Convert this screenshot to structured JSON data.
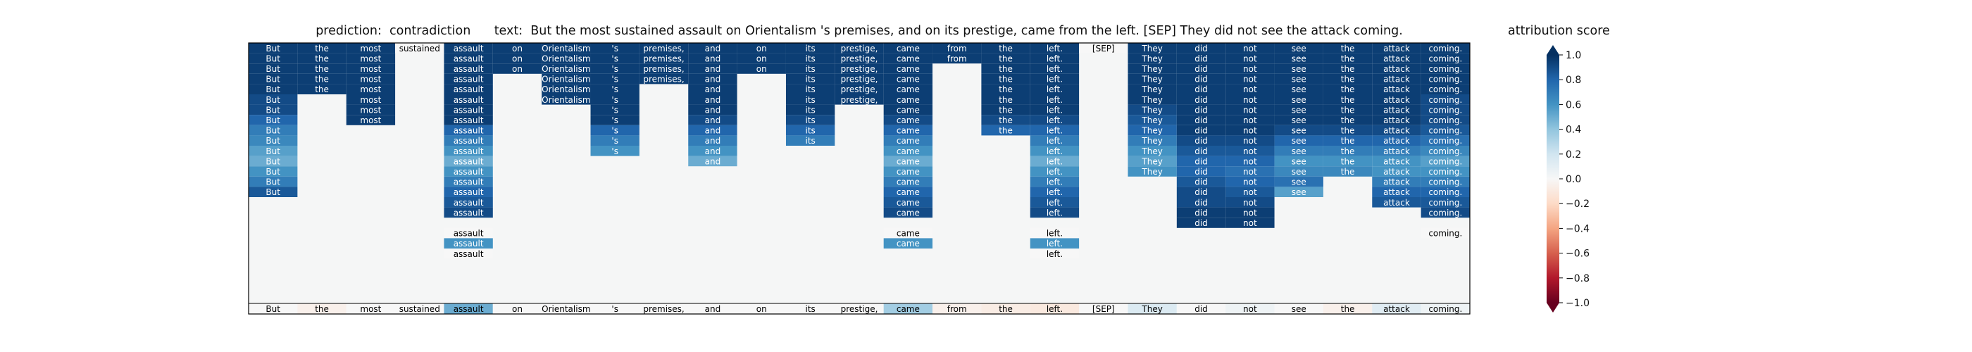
{
  "header": {
    "title": "prediction:  contradiction      text:  But the most sustained assault on Orientalism 's premises, and on its prestige, came from the left. [SEP] They did not see the attack coming."
  },
  "colorbar": {
    "title": "attribution score",
    "ticks": [
      "1.0",
      "0.8",
      "0.6",
      "0.4",
      "0.2",
      "0.0",
      "−0.2",
      "−0.4",
      "−0.6",
      "−0.8",
      "−1.0"
    ],
    "tick_values": [
      1.0,
      0.8,
      0.6,
      0.4,
      0.2,
      0.0,
      -0.2,
      -0.4,
      -0.6,
      -0.8,
      -1.0
    ],
    "range": [
      -1.0,
      1.0
    ],
    "colormap": "RdBu",
    "extend": "both"
  },
  "chart_data": {
    "type": "heatmap",
    "tokens": [
      "But",
      "the",
      "most",
      "sustained",
      "assault",
      "on",
      "Orientalism",
      "'s",
      "premises,",
      "and",
      "on",
      "its",
      "prestige,",
      "came",
      "from",
      "the",
      "left.",
      "[SEP]",
      "They",
      "did",
      "not",
      "see",
      "the",
      "attack",
      "coming."
    ],
    "token_attribution": [
      0.0,
      -0.05,
      0.0,
      0.0,
      0.5,
      0.0,
      0.0,
      0.0,
      0.0,
      0.0,
      0.0,
      0.0,
      0.0,
      0.35,
      -0.05,
      -0.08,
      -0.1,
      0.0,
      0.15,
      0.0,
      0.05,
      0.0,
      -0.05,
      0.12,
      0.05
    ],
    "rows": [
      [
        0.95,
        0.95,
        0.95,
        0.0,
        0.95,
        0.95,
        0.95,
        0.95,
        0.95,
        0.95,
        0.95,
        0.95,
        0.95,
        0.95,
        0.95,
        0.95,
        0.95,
        0.0,
        0.95,
        0.95,
        0.95,
        0.95,
        0.95,
        0.95,
        0.95
      ],
      [
        0.95,
        0.95,
        0.95,
        null,
        0.95,
        0.95,
        0.95,
        0.95,
        0.95,
        0.95,
        0.95,
        0.95,
        0.95,
        0.95,
        0.95,
        0.95,
        0.95,
        null,
        0.95,
        0.95,
        0.95,
        0.95,
        0.95,
        0.95,
        0.95
      ],
      [
        0.95,
        0.95,
        0.95,
        null,
        0.95,
        0.95,
        0.95,
        0.95,
        0.95,
        0.95,
        0.95,
        0.95,
        0.95,
        0.95,
        null,
        0.95,
        0.95,
        null,
        0.95,
        0.95,
        0.95,
        0.95,
        0.95,
        0.95,
        0.95
      ],
      [
        0.95,
        0.95,
        0.95,
        null,
        0.95,
        null,
        0.95,
        0.95,
        0.95,
        0.95,
        null,
        0.95,
        0.95,
        0.95,
        null,
        0.95,
        0.95,
        null,
        0.95,
        0.95,
        0.95,
        0.95,
        0.95,
        0.95,
        0.95
      ],
      [
        0.95,
        0.95,
        0.95,
        null,
        0.95,
        null,
        0.95,
        0.95,
        null,
        0.95,
        null,
        0.95,
        0.95,
        0.95,
        null,
        0.95,
        0.95,
        null,
        0.95,
        0.95,
        0.95,
        0.95,
        0.95,
        0.95,
        0.95
      ],
      [
        0.9,
        null,
        0.95,
        null,
        0.95,
        null,
        0.95,
        0.95,
        null,
        0.95,
        null,
        0.95,
        0.95,
        0.95,
        null,
        0.95,
        0.95,
        null,
        0.95,
        0.95,
        0.95,
        0.95,
        0.95,
        0.95,
        0.9
      ],
      [
        0.9,
        null,
        0.95,
        null,
        0.95,
        null,
        null,
        0.95,
        null,
        0.95,
        null,
        0.95,
        null,
        0.95,
        null,
        0.95,
        0.95,
        null,
        0.9,
        0.95,
        0.95,
        0.95,
        0.95,
        0.95,
        0.9
      ],
      [
        0.8,
        null,
        0.95,
        null,
        0.95,
        null,
        null,
        0.95,
        null,
        0.9,
        null,
        0.9,
        null,
        0.9,
        null,
        0.9,
        0.9,
        null,
        0.85,
        0.95,
        0.95,
        0.95,
        0.95,
        0.95,
        0.9
      ],
      [
        0.7,
        null,
        null,
        null,
        0.8,
        null,
        null,
        0.8,
        null,
        0.8,
        null,
        0.8,
        null,
        0.8,
        null,
        0.8,
        0.8,
        null,
        0.8,
        0.95,
        0.95,
        0.9,
        0.9,
        0.9,
        0.85
      ],
      [
        0.65,
        null,
        null,
        null,
        0.7,
        null,
        null,
        0.7,
        null,
        0.7,
        null,
        0.7,
        null,
        0.7,
        null,
        null,
        0.7,
        null,
        0.7,
        0.9,
        0.9,
        0.8,
        0.8,
        0.8,
        0.75
      ],
      [
        0.55,
        null,
        null,
        null,
        0.6,
        null,
        null,
        0.6,
        null,
        0.6,
        null,
        null,
        null,
        0.6,
        null,
        null,
        0.6,
        null,
        0.6,
        0.85,
        0.85,
        0.7,
        0.7,
        0.7,
        0.65
      ],
      [
        0.5,
        null,
        null,
        null,
        0.5,
        null,
        null,
        null,
        null,
        0.5,
        null,
        null,
        null,
        0.5,
        null,
        null,
        0.5,
        null,
        0.55,
        0.8,
        0.8,
        0.6,
        0.6,
        0.6,
        0.55
      ],
      [
        0.6,
        null,
        null,
        null,
        0.6,
        null,
        null,
        null,
        null,
        null,
        null,
        null,
        null,
        0.6,
        null,
        null,
        0.6,
        null,
        0.6,
        0.8,
        0.75,
        0.65,
        0.65,
        0.6,
        0.6
      ],
      [
        0.7,
        null,
        null,
        null,
        0.7,
        null,
        null,
        null,
        null,
        null,
        null,
        null,
        null,
        0.7,
        null,
        null,
        0.7,
        null,
        null,
        0.85,
        0.8,
        0.75,
        null,
        0.7,
        0.7
      ],
      [
        0.85,
        null,
        null,
        null,
        0.8,
        null,
        null,
        null,
        null,
        null,
        null,
        null,
        null,
        0.8,
        null,
        null,
        0.8,
        null,
        null,
        0.9,
        0.85,
        0.55,
        null,
        0.8,
        0.8
      ],
      [
        null,
        null,
        null,
        null,
        0.85,
        null,
        null,
        null,
        null,
        null,
        null,
        null,
        null,
        0.85,
        null,
        null,
        0.85,
        null,
        null,
        0.9,
        0.9,
        null,
        null,
        0.85,
        0.85
      ],
      [
        null,
        null,
        null,
        null,
        0.9,
        null,
        null,
        null,
        null,
        null,
        null,
        null,
        null,
        0.9,
        null,
        null,
        0.9,
        null,
        null,
        0.95,
        0.95,
        null,
        null,
        null,
        0.9
      ],
      [
        null,
        null,
        null,
        null,
        null,
        null,
        null,
        null,
        null,
        null,
        null,
        null,
        null,
        null,
        null,
        null,
        null,
        null,
        null,
        0.95,
        0.95,
        null,
        null,
        null,
        null
      ],
      [
        null,
        null,
        null,
        null,
        0.0,
        null,
        null,
        null,
        null,
        null,
        null,
        null,
        null,
        0.0,
        null,
        null,
        0.0,
        null,
        null,
        null,
        null,
        null,
        null,
        null,
        0.0
      ],
      [
        null,
        null,
        null,
        null,
        0.6,
        null,
        null,
        null,
        null,
        null,
        null,
        null,
        null,
        0.6,
        null,
        null,
        0.6,
        null,
        null,
        null,
        null,
        null,
        null,
        null,
        null
      ],
      [
        null,
        null,
        null,
        null,
        0.0,
        null,
        null,
        null,
        null,
        null,
        null,
        null,
        null,
        null,
        null,
        null,
        0.0,
        null,
        null,
        null,
        null,
        null,
        null,
        null,
        null
      ]
    ],
    "vmin": -1.0,
    "vmax": 1.0,
    "xlabel": "",
    "ylabel": ""
  }
}
